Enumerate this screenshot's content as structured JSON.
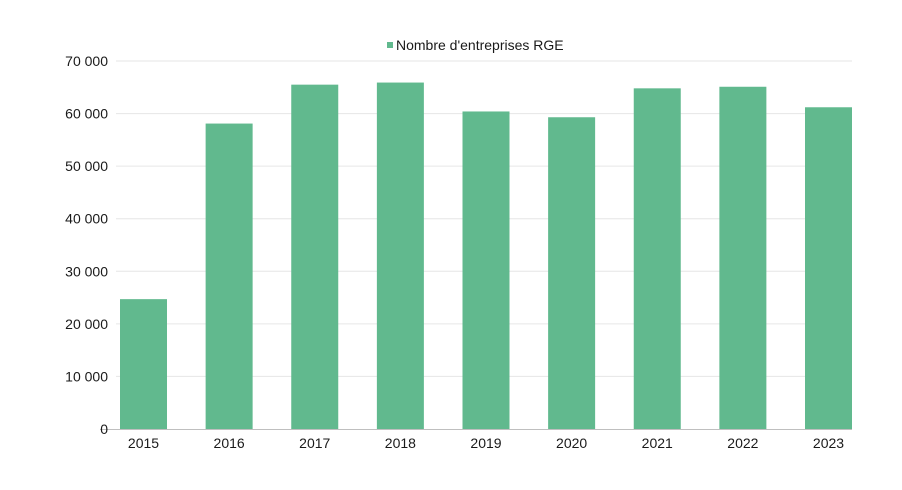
{
  "chart_data": {
    "type": "bar",
    "title": "",
    "xlabel": "",
    "ylabel": "",
    "categories": [
      "2015",
      "2016",
      "2017",
      "2018",
      "2019",
      "2020",
      "2021",
      "2022",
      "2023"
    ],
    "series": [
      {
        "name": "Nombre d'entreprises RGE",
        "color": "#61b98e",
        "values": [
          24700,
          58100,
          65500,
          65900,
          60400,
          59300,
          64800,
          65100,
          61200
        ]
      }
    ],
    "ylim": [
      0,
      70000
    ],
    "yticks": [
      0,
      10000,
      20000,
      30000,
      40000,
      50000,
      60000,
      70000
    ],
    "ytick_labels": [
      "0",
      "10 000",
      "20 000",
      "30 000",
      "40 000",
      "50 000",
      "60 000",
      "70 000"
    ],
    "grid": true,
    "legend_position": "top-center"
  }
}
